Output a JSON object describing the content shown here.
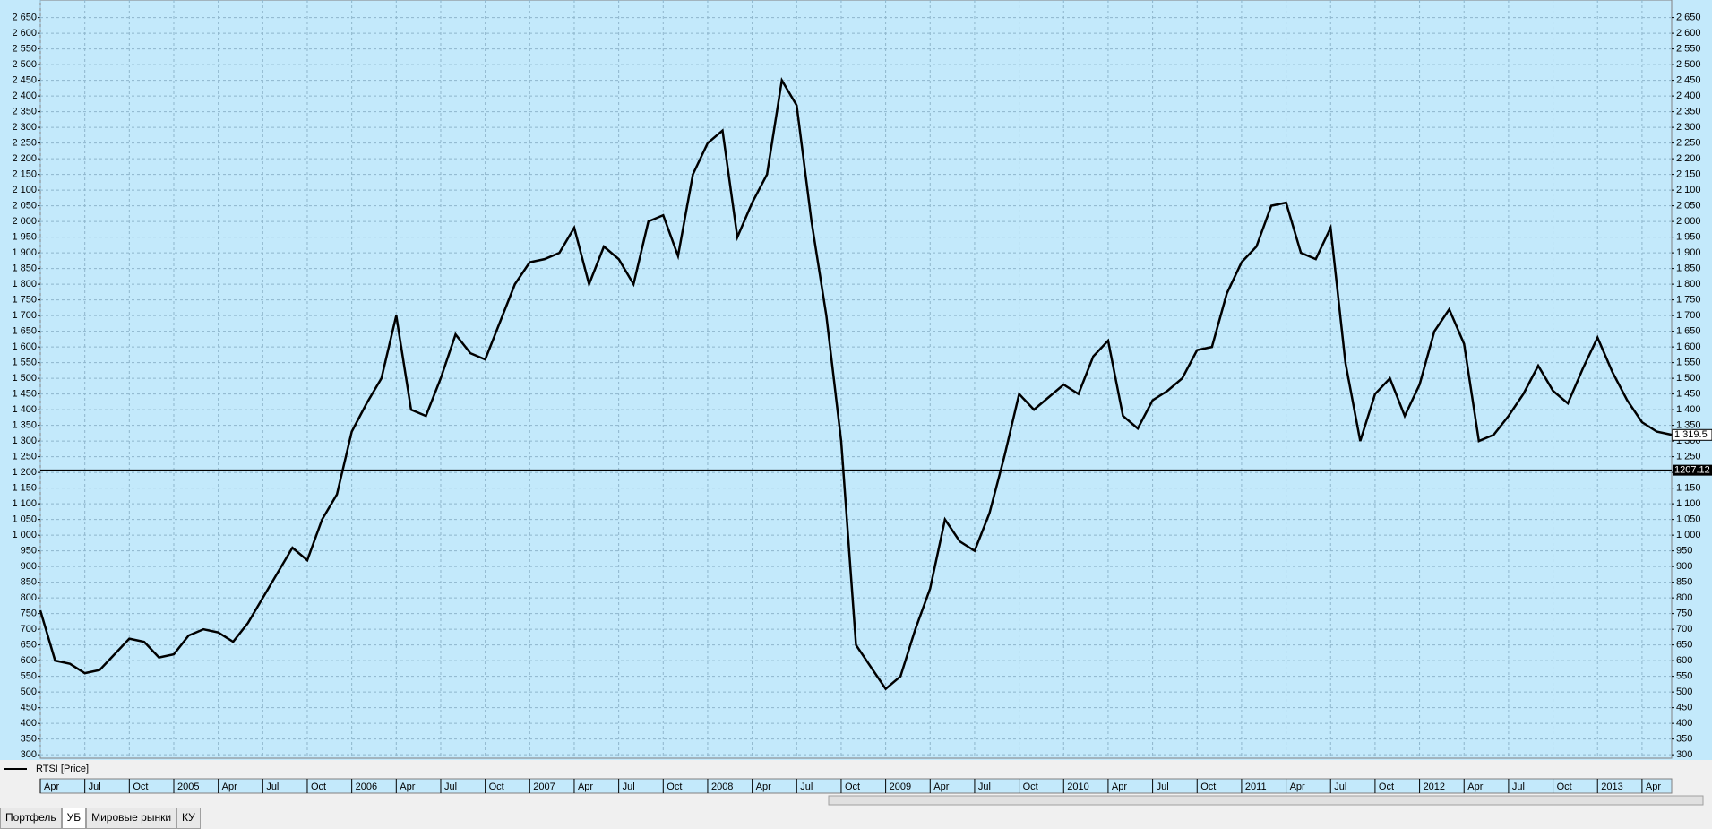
{
  "chart_data": {
    "type": "line",
    "x": [
      "2004-04",
      "2004-05",
      "2004-06",
      "2004-07",
      "2004-08",
      "2004-09",
      "2004-10",
      "2004-11",
      "2004-12",
      "2005-01",
      "2005-02",
      "2005-03",
      "2005-04",
      "2005-05",
      "2005-06",
      "2005-07",
      "2005-08",
      "2005-09",
      "2005-10",
      "2005-11",
      "2005-12",
      "2006-01",
      "2006-02",
      "2006-03",
      "2006-04",
      "2006-05",
      "2006-06",
      "2006-07",
      "2006-08",
      "2006-09",
      "2006-10",
      "2006-11",
      "2006-12",
      "2007-01",
      "2007-02",
      "2007-03",
      "2007-04",
      "2007-05",
      "2007-06",
      "2007-07",
      "2007-08",
      "2007-09",
      "2007-10",
      "2007-11",
      "2007-12",
      "2008-01",
      "2008-02",
      "2008-03",
      "2008-04",
      "2008-05",
      "2008-06",
      "2008-07",
      "2008-08",
      "2008-09",
      "2008-10",
      "2008-11",
      "2008-12",
      "2009-01",
      "2009-02",
      "2009-03",
      "2009-04",
      "2009-05",
      "2009-06",
      "2009-07",
      "2009-08",
      "2009-09",
      "2009-10",
      "2009-11",
      "2009-12",
      "2010-01",
      "2010-02",
      "2010-03",
      "2010-04",
      "2010-05",
      "2010-06",
      "2010-07",
      "2010-08",
      "2010-09",
      "2010-10",
      "2010-11",
      "2010-12",
      "2011-01",
      "2011-02",
      "2011-03",
      "2011-04",
      "2011-05",
      "2011-06",
      "2011-07",
      "2011-08",
      "2011-09",
      "2011-10",
      "2011-11",
      "2011-12",
      "2012-01",
      "2012-02",
      "2012-03",
      "2012-04",
      "2012-05",
      "2012-06",
      "2012-07",
      "2012-08",
      "2012-09",
      "2012-10",
      "2012-11",
      "2012-12",
      "2013-01",
      "2013-02",
      "2013-03",
      "2013-04",
      "2013-05",
      "2013-06"
    ],
    "series": [
      {
        "name": "RTSI [Price]",
        "color": "#000000",
        "values": [
          760,
          600,
          590,
          560,
          570,
          620,
          670,
          660,
          610,
          620,
          680,
          700,
          690,
          660,
          720,
          800,
          880,
          960,
          920,
          1050,
          1130,
          1330,
          1420,
          1500,
          1700,
          1400,
          1380,
          1500,
          1640,
          1580,
          1560,
          1680,
          1800,
          1870,
          1880,
          1900,
          1980,
          1800,
          1920,
          1880,
          1800,
          2000,
          2020,
          1890,
          2150,
          2250,
          2290,
          1950,
          2060,
          2150,
          2450,
          2370,
          2000,
          1700,
          1300,
          650,
          580,
          510,
          550,
          700,
          830,
          1050,
          980,
          950,
          1070,
          1250,
          1450,
          1400,
          1440,
          1480,
          1450,
          1570,
          1620,
          1380,
          1340,
          1430,
          1460,
          1500,
          1590,
          1600,
          1770,
          1870,
          1920,
          2050,
          2060,
          1900,
          1880,
          1980,
          1550,
          1300,
          1450,
          1500,
          1380,
          1480,
          1650,
          1720,
          1610,
          1300,
          1320,
          1380,
          1450,
          1540,
          1460,
          1420,
          1530,
          1630,
          1520,
          1430,
          1360,
          1330,
          1320
        ]
      }
    ],
    "xlim": [
      "2004-04",
      "2013-06"
    ],
    "xticks": [
      {
        "value": "2004-04",
        "label": "Apr"
      },
      {
        "value": "2004-07",
        "label": "Jul"
      },
      {
        "value": "2004-10",
        "label": "Oct"
      },
      {
        "value": "2005-01",
        "label": "2005"
      },
      {
        "value": "2005-04",
        "label": "Apr"
      },
      {
        "value": "2005-07",
        "label": "Jul"
      },
      {
        "value": "2005-10",
        "label": "Oct"
      },
      {
        "value": "2006-01",
        "label": "2006"
      },
      {
        "value": "2006-04",
        "label": "Apr"
      },
      {
        "value": "2006-07",
        "label": "Jul"
      },
      {
        "value": "2006-10",
        "label": "Oct"
      },
      {
        "value": "2007-01",
        "label": "2007"
      },
      {
        "value": "2007-04",
        "label": "Apr"
      },
      {
        "value": "2007-07",
        "label": "Jul"
      },
      {
        "value": "2007-10",
        "label": "Oct"
      },
      {
        "value": "2008-01",
        "label": "2008"
      },
      {
        "value": "2008-04",
        "label": "Apr"
      },
      {
        "value": "2008-07",
        "label": "Jul"
      },
      {
        "value": "2008-10",
        "label": "Oct"
      },
      {
        "value": "2009-01",
        "label": "2009"
      },
      {
        "value": "2009-04",
        "label": "Apr"
      },
      {
        "value": "2009-07",
        "label": "Jul"
      },
      {
        "value": "2009-10",
        "label": "Oct"
      },
      {
        "value": "2010-01",
        "label": "2010"
      },
      {
        "value": "2010-04",
        "label": "Apr"
      },
      {
        "value": "2010-07",
        "label": "Jul"
      },
      {
        "value": "2010-10",
        "label": "Oct"
      },
      {
        "value": "2011-01",
        "label": "2011"
      },
      {
        "value": "2011-04",
        "label": "Apr"
      },
      {
        "value": "2011-07",
        "label": "Jul"
      },
      {
        "value": "2011-10",
        "label": "Oct"
      },
      {
        "value": "2012-01",
        "label": "2012"
      },
      {
        "value": "2012-04",
        "label": "Apr"
      },
      {
        "value": "2012-07",
        "label": "Jul"
      },
      {
        "value": "2012-10",
        "label": "Oct"
      },
      {
        "value": "2013-01",
        "label": "2013"
      },
      {
        "value": "2013-04",
        "label": "Apr"
      }
    ],
    "ylim": [
      289,
      2706
    ],
    "yticks": [
      300,
      350,
      400,
      450,
      500,
      550,
      600,
      650,
      700,
      750,
      800,
      850,
      900,
      950,
      {
        "value": 1000,
        "label": "1 000"
      },
      {
        "value": 1050,
        "label": "1 050"
      },
      {
        "value": 1100,
        "label": "1 100"
      },
      {
        "value": 1150,
        "label": "1 150"
      },
      {
        "value": 1200,
        "label": "1 200"
      },
      {
        "value": 1250,
        "label": "1 250"
      },
      {
        "value": 1300,
        "label": "1 300"
      },
      {
        "value": 1350,
        "label": "1 350"
      },
      {
        "value": 1400,
        "label": "1 400"
      },
      {
        "value": 1450,
        "label": "1 450"
      },
      {
        "value": 1500,
        "label": "1 500"
      },
      {
        "value": 1550,
        "label": "1 550"
      },
      {
        "value": 1600,
        "label": "1 600"
      },
      {
        "value": 1650,
        "label": "1 650"
      },
      {
        "value": 1700,
        "label": "1 700"
      },
      {
        "value": 1750,
        "label": "1 750"
      },
      {
        "value": 1800,
        "label": "1 800"
      },
      {
        "value": 1850,
        "label": "1 850"
      },
      {
        "value": 1900,
        "label": "1 900"
      },
      {
        "value": 1950,
        "label": "1 950"
      },
      {
        "value": 2000,
        "label": "2 000"
      },
      {
        "value": 2050,
        "label": "2 050"
      },
      {
        "value": 2100,
        "label": "2 100"
      },
      {
        "value": 2150,
        "label": "2 150"
      },
      {
        "value": 2200,
        "label": "2 200"
      },
      {
        "value": 2250,
        "label": "2 250"
      },
      {
        "value": 2300,
        "label": "2 300"
      },
      {
        "value": 2350,
        "label": "2 350"
      },
      {
        "value": 2400,
        "label": "2 400"
      },
      {
        "value": 2450,
        "label": "2 450"
      },
      {
        "value": 2500,
        "label": "2 500"
      },
      {
        "value": 2550,
        "label": "2 550"
      },
      {
        "value": 2600,
        "label": "2 600"
      },
      {
        "value": 2650,
        "label": "2 650"
      }
    ],
    "grid": true,
    "hline": {
      "value": 1207.12,
      "label": "1207.12"
    },
    "last_price": {
      "value": 1319.5,
      "label": "1 319.5"
    }
  },
  "tabs": [
    "Портфель",
    "УБ",
    "Мировые рынки",
    "КУ"
  ]
}
